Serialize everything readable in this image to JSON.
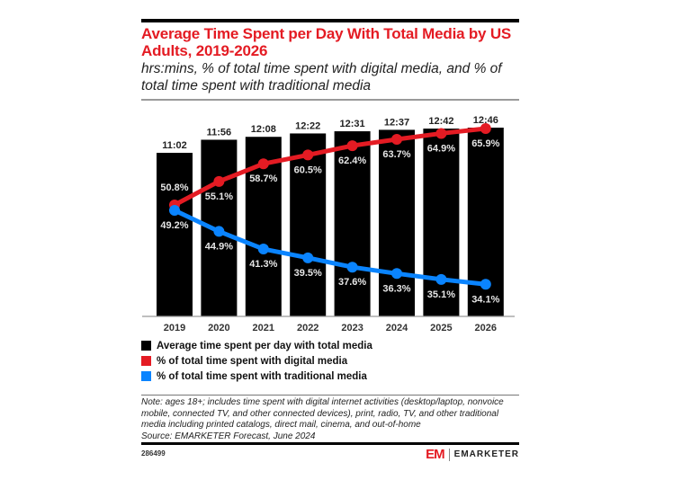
{
  "title": "Average Time Spent per Day With Total Media by US Adults, 2019-2026",
  "subtitle": "hrs:mins, % of total time spent with digital media, and % of total time spent with traditional media",
  "chart_data": {
    "type": "bar",
    "categories": [
      "2019",
      "2020",
      "2021",
      "2022",
      "2023",
      "2024",
      "2025",
      "2026"
    ],
    "bar_series": {
      "name": "Average time spent per day with total media",
      "labels": [
        "11:02",
        "11:56",
        "12:08",
        "12:22",
        "12:31",
        "12:37",
        "12:42",
        "12:46"
      ],
      "values_minutes": [
        662,
        716,
        728,
        742,
        751,
        757,
        762,
        766
      ],
      "color": "#000000"
    },
    "line_series": [
      {
        "name": "% of total time spent with digital media",
        "values": [
          50.8,
          55.1,
          58.7,
          60.5,
          62.4,
          63.7,
          64.9,
          65.9
        ],
        "labels": [
          "50.8%",
          "55.1%",
          "58.7%",
          "60.5%",
          "62.4%",
          "63.7%",
          "64.9%",
          "65.9%"
        ],
        "color": "#e41b23"
      },
      {
        "name": "% of total time spent with traditional media",
        "values": [
          49.2,
          44.9,
          41.3,
          39.5,
          37.6,
          36.3,
          35.1,
          34.1
        ],
        "labels": [
          "49.2%",
          "44.9%",
          "41.3%",
          "39.5%",
          "37.6%",
          "36.3%",
          "35.1%",
          "34.1%"
        ],
        "color": "#0a84ff"
      }
    ],
    "xlabel": "",
    "ylabel": "",
    "grid": false,
    "legend_position": "bottom"
  },
  "legend": [
    {
      "label": "Average time spent per day with total media",
      "color": "#000000"
    },
    {
      "label": "% of total time spent with digital media",
      "color": "#e41b23"
    },
    {
      "label": "% of total time spent with traditional media",
      "color": "#0a84ff"
    }
  ],
  "note": "Note: ages 18+; includes time spent with digital internet activities (desktop/laptop, nonvoice mobile, connected TV, and other connected devices), print, radio, TV, and other traditional media including printed catalogs, direct mail, cinema, and out-of-home",
  "source": "Source: EMARKETER Forecast, June 2024",
  "chart_id": "286499",
  "brand": {
    "mark": "EM",
    "name": "EMARKETER",
    "color": "#e41b23"
  }
}
